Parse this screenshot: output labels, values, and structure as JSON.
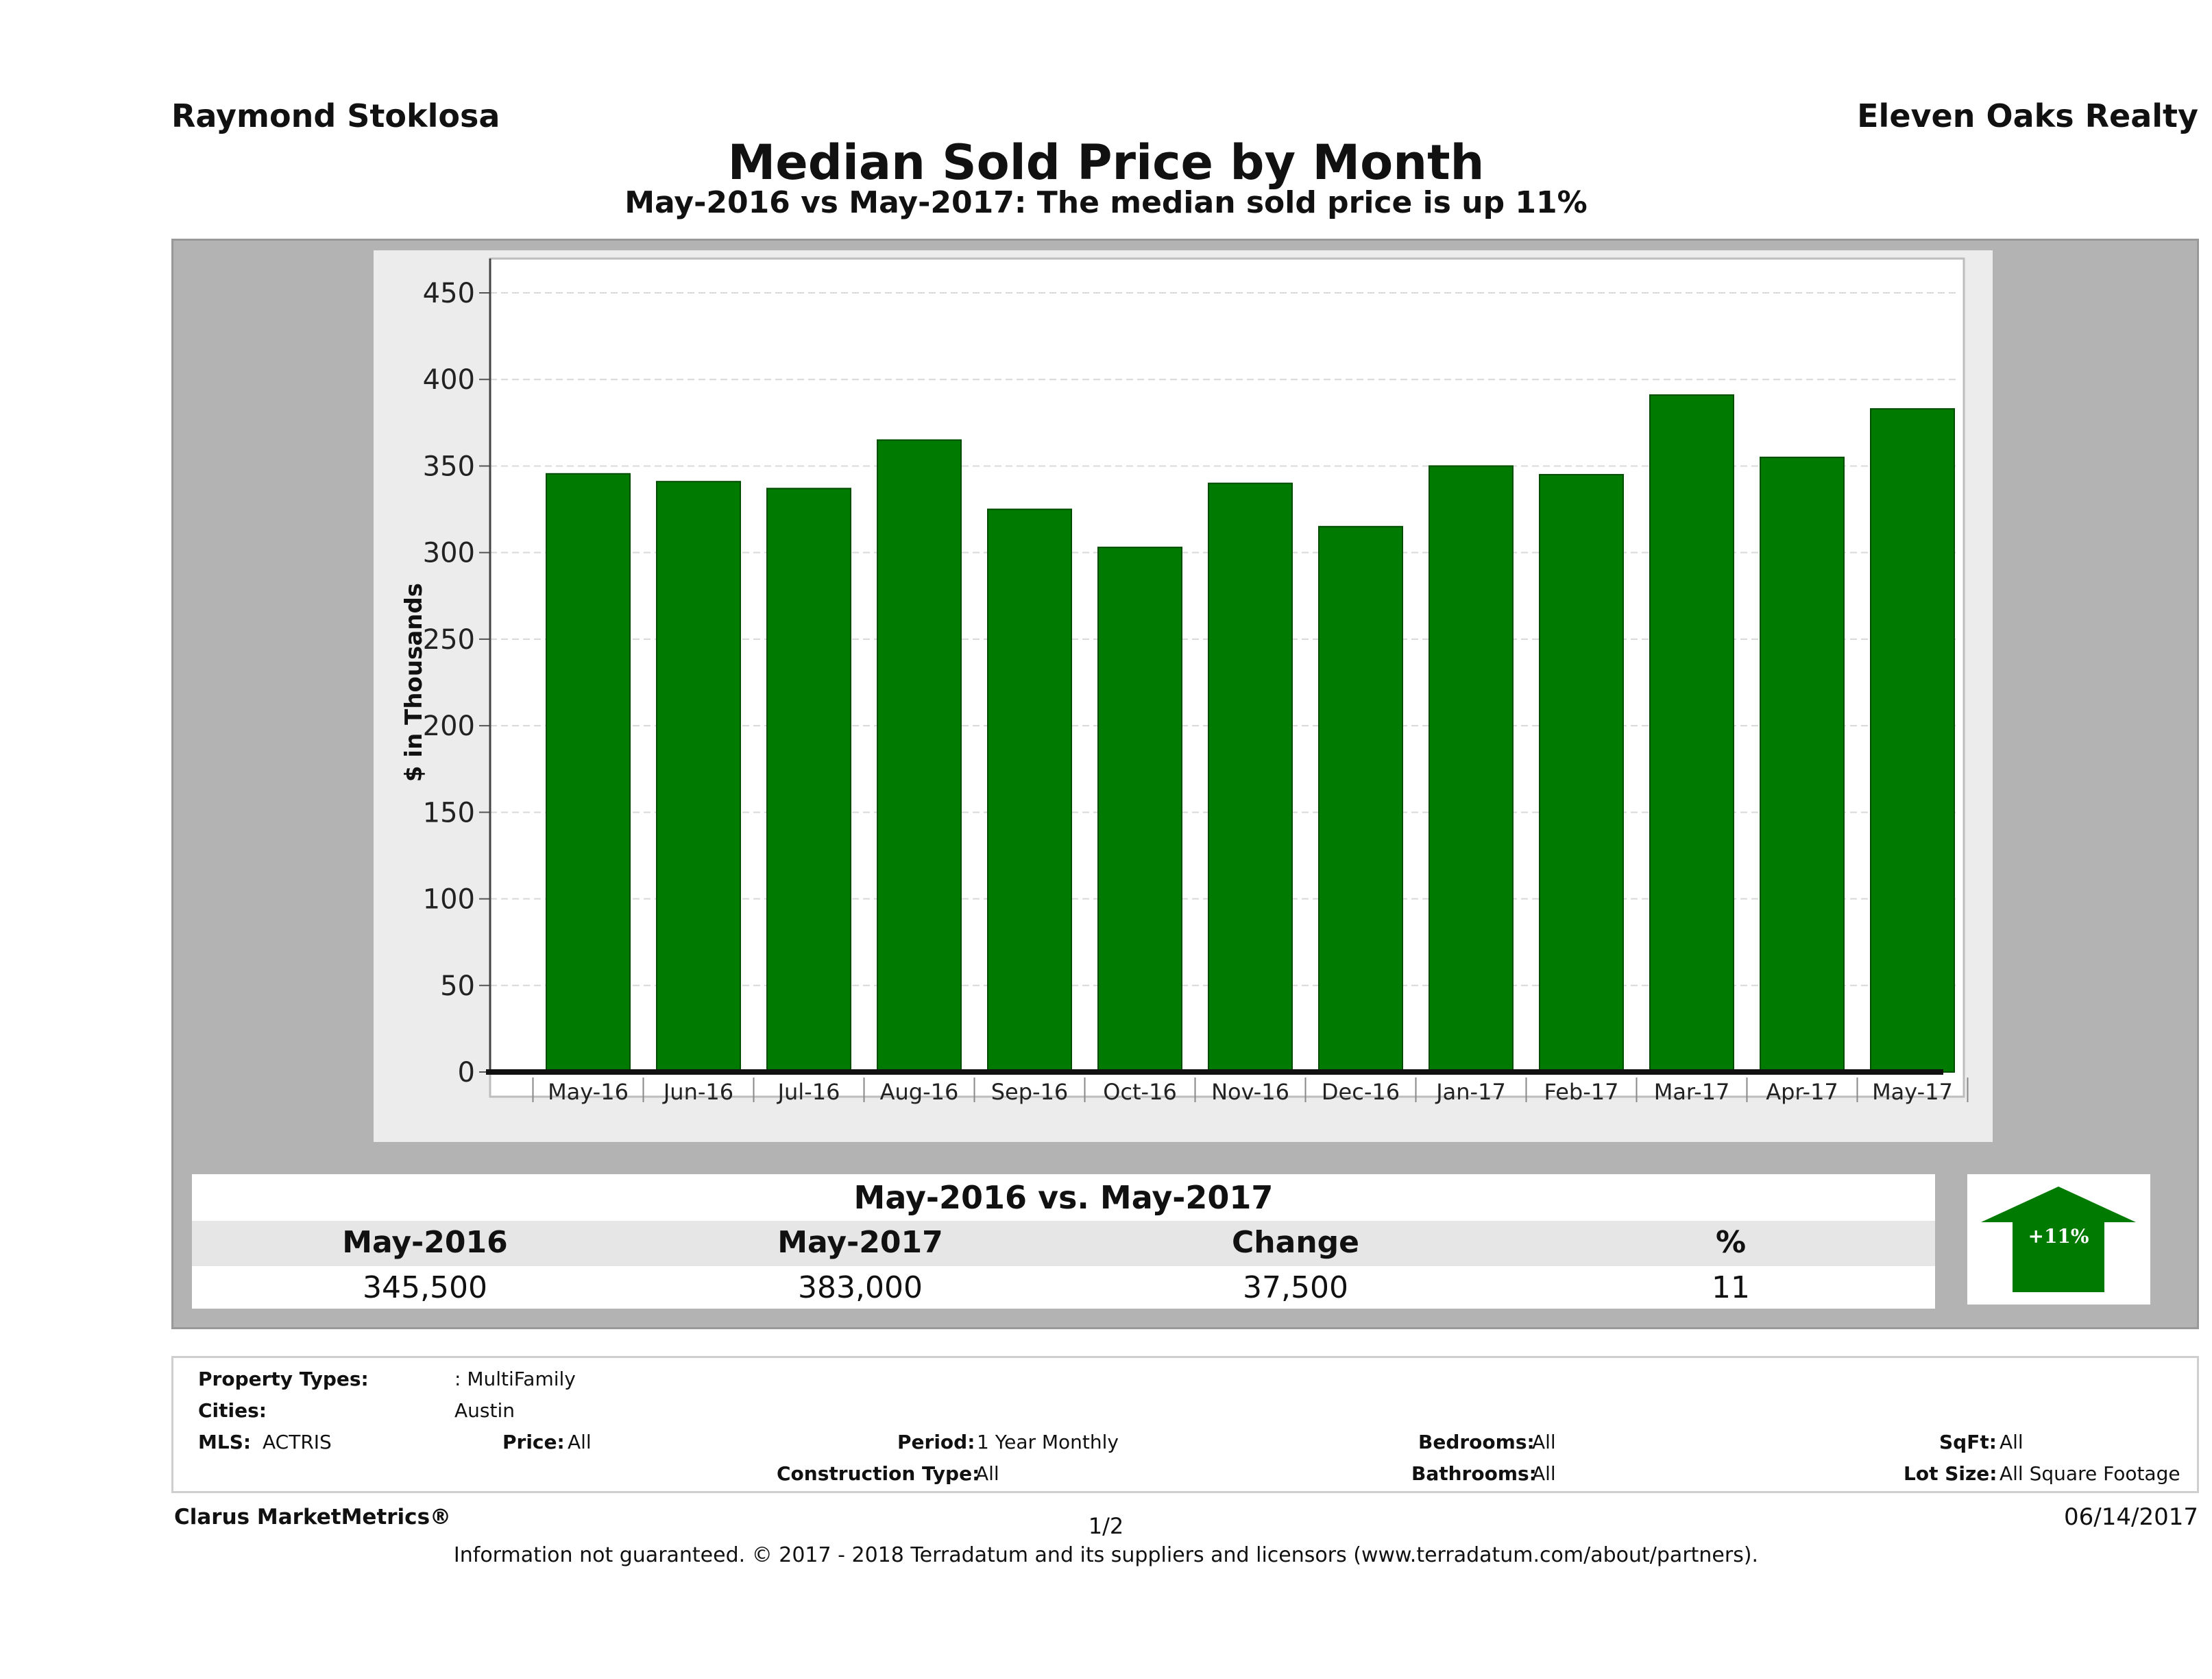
{
  "header": {
    "agent": "Raymond Stoklosa",
    "brokerage": "Eleven Oaks Realty",
    "title": "Median Sold Price by Month",
    "subtitle": "May-2016 vs May-2017: The median sold price is up 11%"
  },
  "chart_data": {
    "type": "bar",
    "categories": [
      "May-16",
      "Jun-16",
      "Jul-16",
      "Aug-16",
      "Sep-16",
      "Oct-16",
      "Nov-16",
      "Dec-16",
      "Jan-17",
      "Feb-17",
      "Mar-17",
      "Apr-17",
      "May-17"
    ],
    "values": [
      345.5,
      341,
      337,
      365,
      325,
      303,
      340,
      315,
      350,
      345,
      391,
      355,
      383
    ],
    "title": "",
    "xlabel": "",
    "ylabel": "$ in Thousands",
    "ylim": [
      0,
      460
    ],
    "yticks": [
      0,
      50,
      100,
      150,
      200,
      250,
      300,
      350,
      400,
      450
    ],
    "bar_color": "#007a00",
    "grid": true
  },
  "summary": {
    "title": "May-2016 vs. May-2017",
    "headers": [
      "May-2016",
      "May-2017",
      "Change",
      "%"
    ],
    "values": [
      "345,500",
      "383,000",
      "37,500",
      "11"
    ],
    "badge": "+11%",
    "badge_color": "#007a00"
  },
  "criteria": {
    "property_types_label": "Property Types:",
    "property_types_value": ": MultiFamily",
    "cities_label": "Cities:",
    "cities_value": "Austin",
    "mls_label": "MLS:",
    "mls_value": "ACTRIS",
    "price_label": "Price:",
    "price_value": "All",
    "period_label": "Period:",
    "period_value": "1 Year Monthly",
    "construction_label": "Construction Type:",
    "construction_value": "All",
    "bedrooms_label": "Bedrooms:",
    "bedrooms_value": "All",
    "bathrooms_label": "Bathrooms:",
    "bathrooms_value": "All",
    "sqft_label": "SqFt:",
    "sqft_value": "All",
    "lot_label": "Lot Size:",
    "lot_value": "All Square Footage"
  },
  "footer": {
    "brand": "Clarus MarketMetrics®",
    "page": "1/2",
    "date": "06/14/2017",
    "disclaimer": "Information not guaranteed. © 2017 - 2018 Terradatum and its suppliers and licensors (www.terradatum.com/about/partners)."
  }
}
